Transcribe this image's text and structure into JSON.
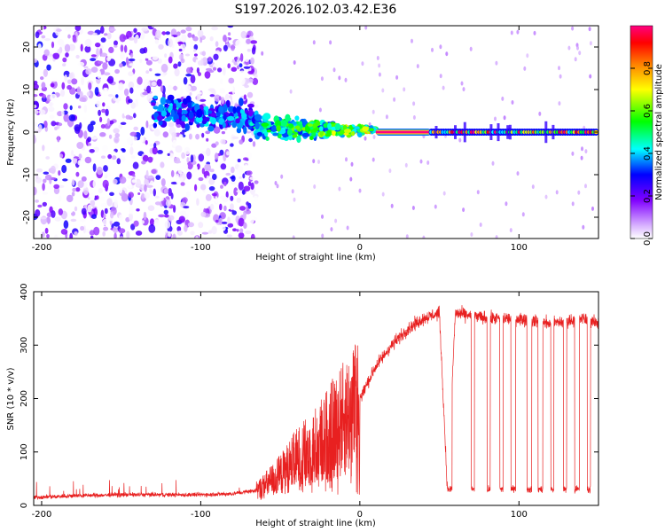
{
  "chart_data": [
    {
      "type": "heatmap",
      "title": "S197.2026.102.03.42.E36",
      "xlabel": "Height of straight line (km)",
      "ylabel": "Frequency (Hz)",
      "xlim": [
        -205,
        150
      ],
      "ylim": [
        -25,
        25
      ],
      "xticks": [
        -200,
        -100,
        0,
        100
      ],
      "xtick_labels": [
        "-200",
        "-100",
        "0",
        "100"
      ],
      "yticks": [
        -20,
        -10,
        0,
        10,
        20
      ],
      "ytick_labels": [
        "-20",
        "-10",
        "0",
        "10",
        "20"
      ],
      "colorbar": {
        "label": "Normalized spectral amplitude",
        "range": [
          0,
          1
        ],
        "ticks": [
          0.0,
          0.2,
          0.4,
          0.6,
          0.8
        ],
        "tick_labels": [
          "0.0",
          "0.2",
          "0.4",
          "0.6",
          "0.8"
        ],
        "colors": [
          "#ffffff",
          "#d9b3ff",
          "#8000ff",
          "#0000ff",
          "#00ffff",
          "#00ff00",
          "#ffff00",
          "#ff8000",
          "#ff0000",
          "#ff0080"
        ]
      },
      "regions": [
        {
          "x_range": [
            -205,
            -65
          ],
          "description": "scattered noise across all frequencies",
          "amplitude": [
            0.0,
            0.3
          ]
        },
        {
          "x_range": [
            -130,
            -65
          ],
          "description": "weak band near 5 Hz",
          "amplitude": [
            0.2,
            0.45
          ]
        },
        {
          "x_range": [
            -65,
            10
          ],
          "description": "band converging to 0 Hz",
          "amplitude": [
            0.3,
            0.8
          ]
        },
        {
          "x_range": [
            10,
            45
          ],
          "description": "continuous line at 0 Hz",
          "amplitude": [
            0.95,
            1.0
          ]
        },
        {
          "x_range": [
            45,
            150
          ],
          "description": "intermittent line at 0 Hz",
          "amplitude": [
            0.4,
            1.0
          ]
        }
      ]
    },
    {
      "type": "line",
      "xlabel": "Height of straight line (km)",
      "ylabel": "SNR (10 * v/v)",
      "xlim": [
        -205,
        150
      ],
      "ylim": [
        0,
        400
      ],
      "xticks": [
        -200,
        -100,
        0,
        100
      ],
      "xtick_labels": [
        "-200",
        "-100",
        "0",
        "100"
      ],
      "yticks": [
        0,
        100,
        200,
        300,
        400
      ],
      "ytick_labels": [
        "0",
        "100",
        "200",
        "300",
        "400"
      ],
      "line_color": "#e82020",
      "series": [
        {
          "name": "SNR",
          "x": [
            -205,
            -180,
            -150,
            -120,
            -100,
            -80,
            -65,
            -50,
            -40,
            -30,
            -20,
            -10,
            0,
            10,
            20,
            30,
            40,
            50,
            55,
            60,
            80,
            100,
            120,
            140,
            150
          ],
          "y": [
            15,
            18,
            20,
            20,
            20,
            22,
            28,
            60,
            90,
            110,
            140,
            170,
            200,
            260,
            300,
            330,
            350,
            360,
            30,
            360,
            350,
            350,
            340,
            350,
            340
          ]
        }
      ],
      "dropouts_x": [
        0,
        55,
        58,
        70,
        72,
        80,
        82,
        88,
        90,
        95,
        98,
        105,
        108,
        112,
        115,
        120,
        122,
        128,
        130,
        135,
        138,
        143,
        145
      ],
      "dropout_level": 30
    }
  ]
}
